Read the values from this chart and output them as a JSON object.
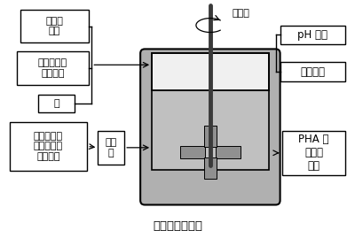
{
  "title": "开放式发酵系统",
  "labels": {
    "halophile": "嗜盐单\n胞菌",
    "nutrients": "其他营养物\n质、空气",
    "salt": "盐",
    "raw_material": "糖蜜或餐厨\n垃圾等各种\n废弃原料",
    "pretreat": "预处\n理",
    "pha": "PHA 分\n离纯化\n制备",
    "ph": "pH 调节",
    "temp": "温度调节",
    "stirrer": "搅拌器"
  },
  "colors": {
    "bg": "#ffffff",
    "box_fc": "#ffffff",
    "box_ec": "#000000",
    "tank_outer_fc": "#b0b0b0",
    "tank_inner_fc": "#d8d8d8",
    "liquid_fc": "#c0c0c0",
    "shaft": "#3a3a3a",
    "impeller": "#909090",
    "line": "#000000"
  },
  "layout": {
    "fig_w": 4.0,
    "fig_h": 2.69,
    "dpi": 100
  }
}
